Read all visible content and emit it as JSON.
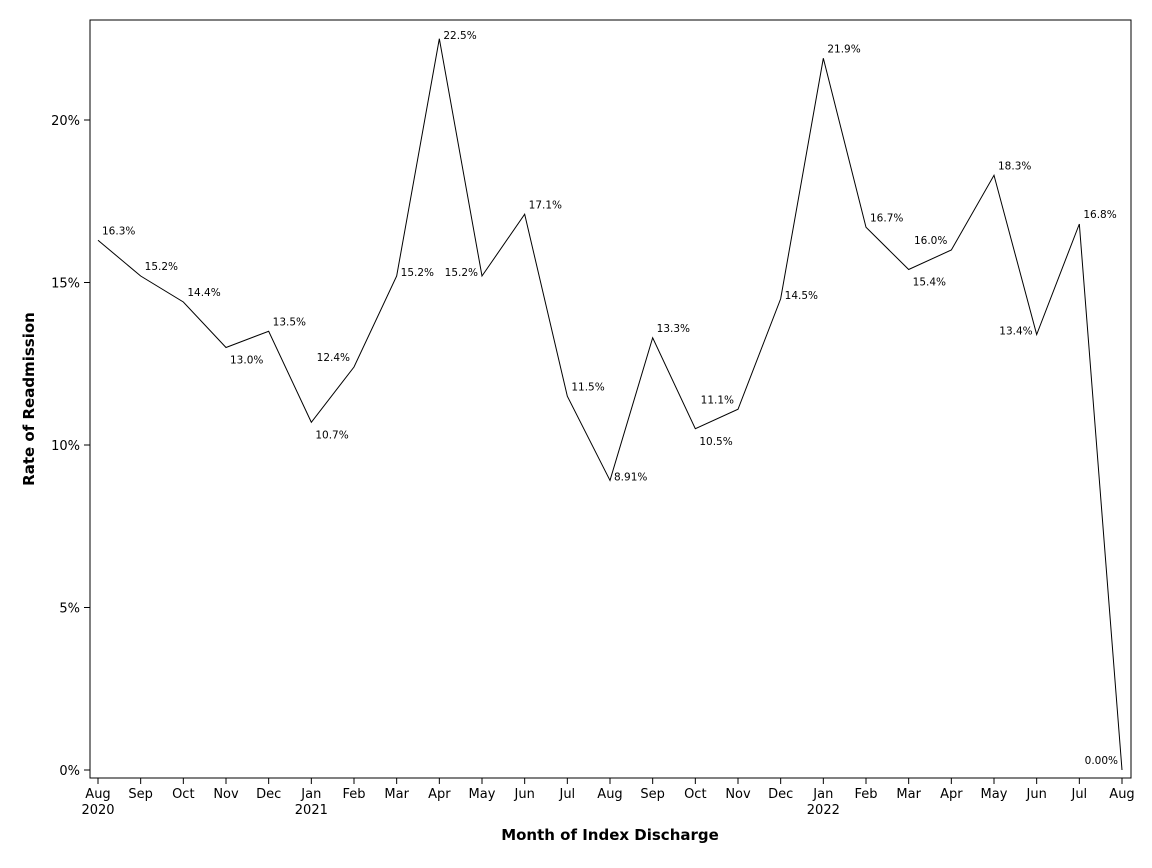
{
  "chart_data": {
    "type": "line",
    "title": "",
    "xlabel": "Month of Index Discharge",
    "ylabel": "Rate of Readmission",
    "ylim": [
      0,
      22.8
    ],
    "y_ticks": [
      {
        "value": 0,
        "label": "0%"
      },
      {
        "value": 5,
        "label": "5%"
      },
      {
        "value": 10,
        "label": "10%"
      },
      {
        "value": 15,
        "label": "15%"
      },
      {
        "value": 20,
        "label": "20%"
      }
    ],
    "categories": [
      "Aug",
      "Sep",
      "Oct",
      "Nov",
      "Dec",
      "Jan",
      "Feb",
      "Mar",
      "Apr",
      "May",
      "Jun",
      "Jul",
      "Aug",
      "Sep",
      "Oct",
      "Nov",
      "Dec",
      "Jan",
      "Feb",
      "Mar",
      "Apr",
      "May",
      "Jun",
      "Jul",
      "Aug"
    ],
    "year_labels": [
      {
        "index": 0,
        "label": "2020"
      },
      {
        "index": 5,
        "label": "2021"
      },
      {
        "index": 17,
        "label": "2022"
      }
    ],
    "series": [
      {
        "name": "Rate of Readmission",
        "values": [
          16.3,
          15.2,
          14.4,
          13.0,
          13.5,
          10.7,
          12.4,
          15.2,
          22.5,
          15.2,
          17.1,
          11.5,
          8.91,
          13.3,
          10.5,
          11.1,
          14.5,
          21.9,
          16.7,
          15.4,
          16.0,
          18.3,
          13.4,
          16.8,
          0.0
        ],
        "labels": [
          "16.3%",
          "15.2%",
          "14.4%",
          "13.0%",
          "13.5%",
          "10.7%",
          "12.4%",
          "15.2%",
          "22.5%",
          "15.2%",
          "17.1%",
          "11.5%",
          "8.91%",
          "13.3%",
          "10.5%",
          "11.1%",
          "14.5%",
          "21.9%",
          "16.7%",
          "15.4%",
          "16.0%",
          "18.3%",
          "13.4%",
          "16.8%",
          "0.00%"
        ],
        "label_positions": [
          "above-right",
          "above-right",
          "above-right",
          "below-right",
          "above-right",
          "below-right",
          "above-left",
          "right",
          "right",
          "left",
          "above-right",
          "above-right",
          "right",
          "above-right",
          "below-right",
          "above-left",
          "right",
          "above-right",
          "above-right",
          "below-right",
          "above-left",
          "above-right",
          "left",
          "above-right",
          "above-left"
        ]
      }
    ],
    "legend": "none",
    "grid": false
  }
}
